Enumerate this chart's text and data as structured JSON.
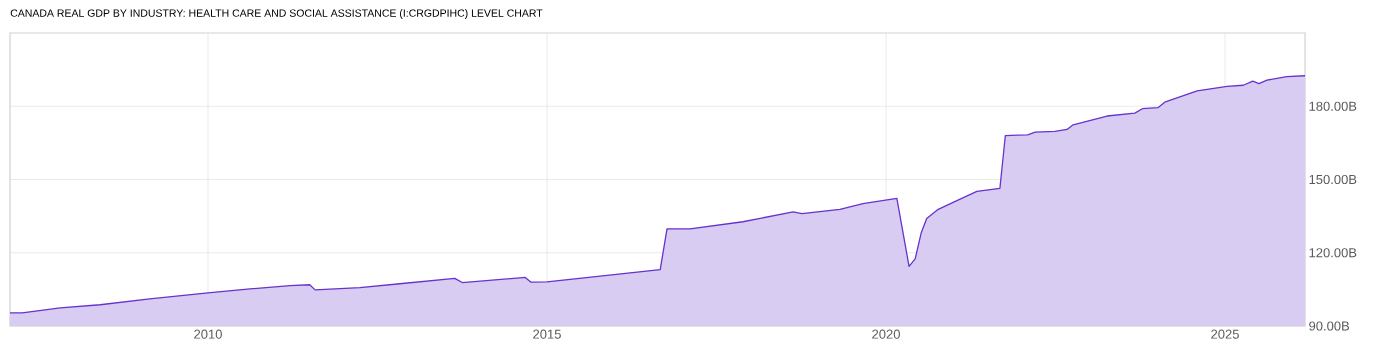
{
  "chart_data": {
    "type": "area",
    "title": "CANADA REAL GDP BY INDUSTRY: HEALTH CARE AND SOCIAL ASSISTANCE (I:CRGDPIHC) LEVEL CHART",
    "x": [
      2007.08,
      2007.26,
      2007.82,
      2008.41,
      2009.14,
      2010.0,
      2010.62,
      2011.21,
      2011.5,
      2011.58,
      2012.24,
      2012.83,
      2013.64,
      2013.75,
      2014.68,
      2014.76,
      2015.0,
      2016.67,
      2016.77,
      2017.11,
      2017.89,
      2018.63,
      2018.76,
      2019.32,
      2019.66,
      2020.16,
      2020.34,
      2020.43,
      2020.52,
      2020.6,
      2020.77,
      2020.99,
      2021.34,
      2021.68,
      2021.76,
      2022.09,
      2022.2,
      2022.49,
      2022.67,
      2022.76,
      2023.26,
      2023.67,
      2023.78,
      2024.01,
      2024.12,
      2024.59,
      2025.03,
      2025.27,
      2025.41,
      2025.5,
      2025.62,
      2025.91,
      2026.18
    ],
    "series": [
      {
        "color": "#6633cc",
        "values": [
          95.4,
          95.4,
          97.4,
          98.7,
          101.1,
          103.6,
          105.2,
          106.5,
          106.9,
          104.8,
          105.7,
          107.3,
          109.5,
          107.8,
          109.9,
          108.0,
          108.1,
          113.1,
          129.8,
          129.8,
          132.7,
          136.7,
          136.0,
          137.8,
          140.1,
          142.3,
          114.4,
          117.5,
          128.2,
          134.0,
          137.8,
          140.6,
          145.1,
          146.4,
          168.0,
          168.3,
          169.4,
          169.7,
          170.5,
          172.4,
          176.0,
          177.2,
          179.0,
          179.4,
          181.8,
          186.3,
          188.1,
          188.6,
          190.3,
          189.3,
          190.7,
          192.1,
          192.5
        ]
      }
    ],
    "xlim": [
      2007.08,
      2026.18
    ],
    "ylim": [
      90,
      210
    ],
    "xticks": [
      2010,
      2015,
      2020,
      2025
    ],
    "yticks": [
      {
        "value": 90,
        "label": "90.00B"
      },
      {
        "value": 120,
        "label": "120.00B"
      },
      {
        "value": 150,
        "label": "150.00B"
      },
      {
        "value": 180,
        "label": "180.00B"
      }
    ],
    "grid": true
  }
}
